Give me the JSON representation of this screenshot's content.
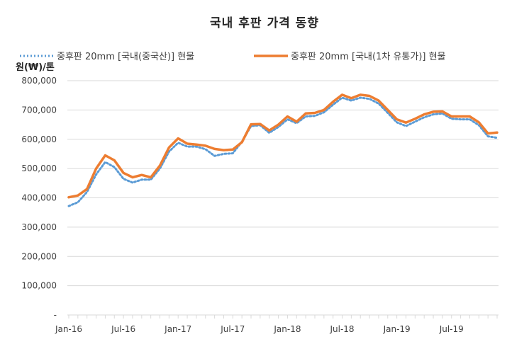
{
  "chart_data": {
    "type": "line",
    "title": "국내 후판 가격 동향",
    "ylabel": "원(₩)/톤",
    "xlabel": "",
    "ylim": [
      0,
      800000
    ],
    "yticks": [
      0,
      100000,
      200000,
      300000,
      400000,
      500000,
      600000,
      700000,
      800000
    ],
    "ytick_labels": [
      "-",
      "100,000",
      "200,000",
      "300,000",
      "400,000",
      "500,000",
      "600,000",
      "700,000",
      "800,000"
    ],
    "grid": true,
    "legend_position": "top",
    "x_tick_labels": [
      {
        "index": 0,
        "label": "Jan-16"
      },
      {
        "index": 6,
        "label": "Jul-16"
      },
      {
        "index": 12,
        "label": "Jan-17"
      },
      {
        "index": 18,
        "label": "Jul-17"
      },
      {
        "index": 24,
        "label": "Jan-18"
      },
      {
        "index": 30,
        "label": "Jul-18"
      },
      {
        "index": 36,
        "label": "Jan-19"
      },
      {
        "index": 42,
        "label": "Jul-19"
      }
    ],
    "series": [
      {
        "name": "중후판 20mm [국내(중국산)] 현물",
        "color": "#5b9bd5",
        "style": "dotted",
        "values": [
          372000,
          385000,
          420000,
          480000,
          522000,
          505000,
          465000,
          452000,
          462000,
          462000,
          500000,
          558000,
          588000,
          575000,
          575000,
          566000,
          543000,
          550000,
          552000,
          592000,
          645000,
          648000,
          622000,
          642000,
          668000,
          655000,
          678000,
          680000,
          692000,
          718000,
          742000,
          732000,
          742000,
          738000,
          722000,
          690000,
          658000,
          645000,
          660000,
          675000,
          685000,
          688000,
          670000,
          668000,
          668000,
          648000,
          610000,
          605000
        ]
      },
      {
        "name": "중후판 20mm [국내(1차 유통가)] 현물",
        "color": "#ed7d31",
        "style": "solid",
        "values": [
          402000,
          408000,
          430000,
          500000,
          545000,
          528000,
          485000,
          470000,
          478000,
          470000,
          510000,
          572000,
          603000,
          585000,
          582000,
          578000,
          567000,
          563000,
          565000,
          590000,
          651000,
          652000,
          630000,
          650000,
          678000,
          660000,
          688000,
          690000,
          700000,
          728000,
          752000,
          740000,
          752000,
          748000,
          732000,
          700000,
          668000,
          657000,
          670000,
          685000,
          694000,
          695000,
          678000,
          678000,
          678000,
          658000,
          620000,
          623000
        ]
      }
    ]
  }
}
